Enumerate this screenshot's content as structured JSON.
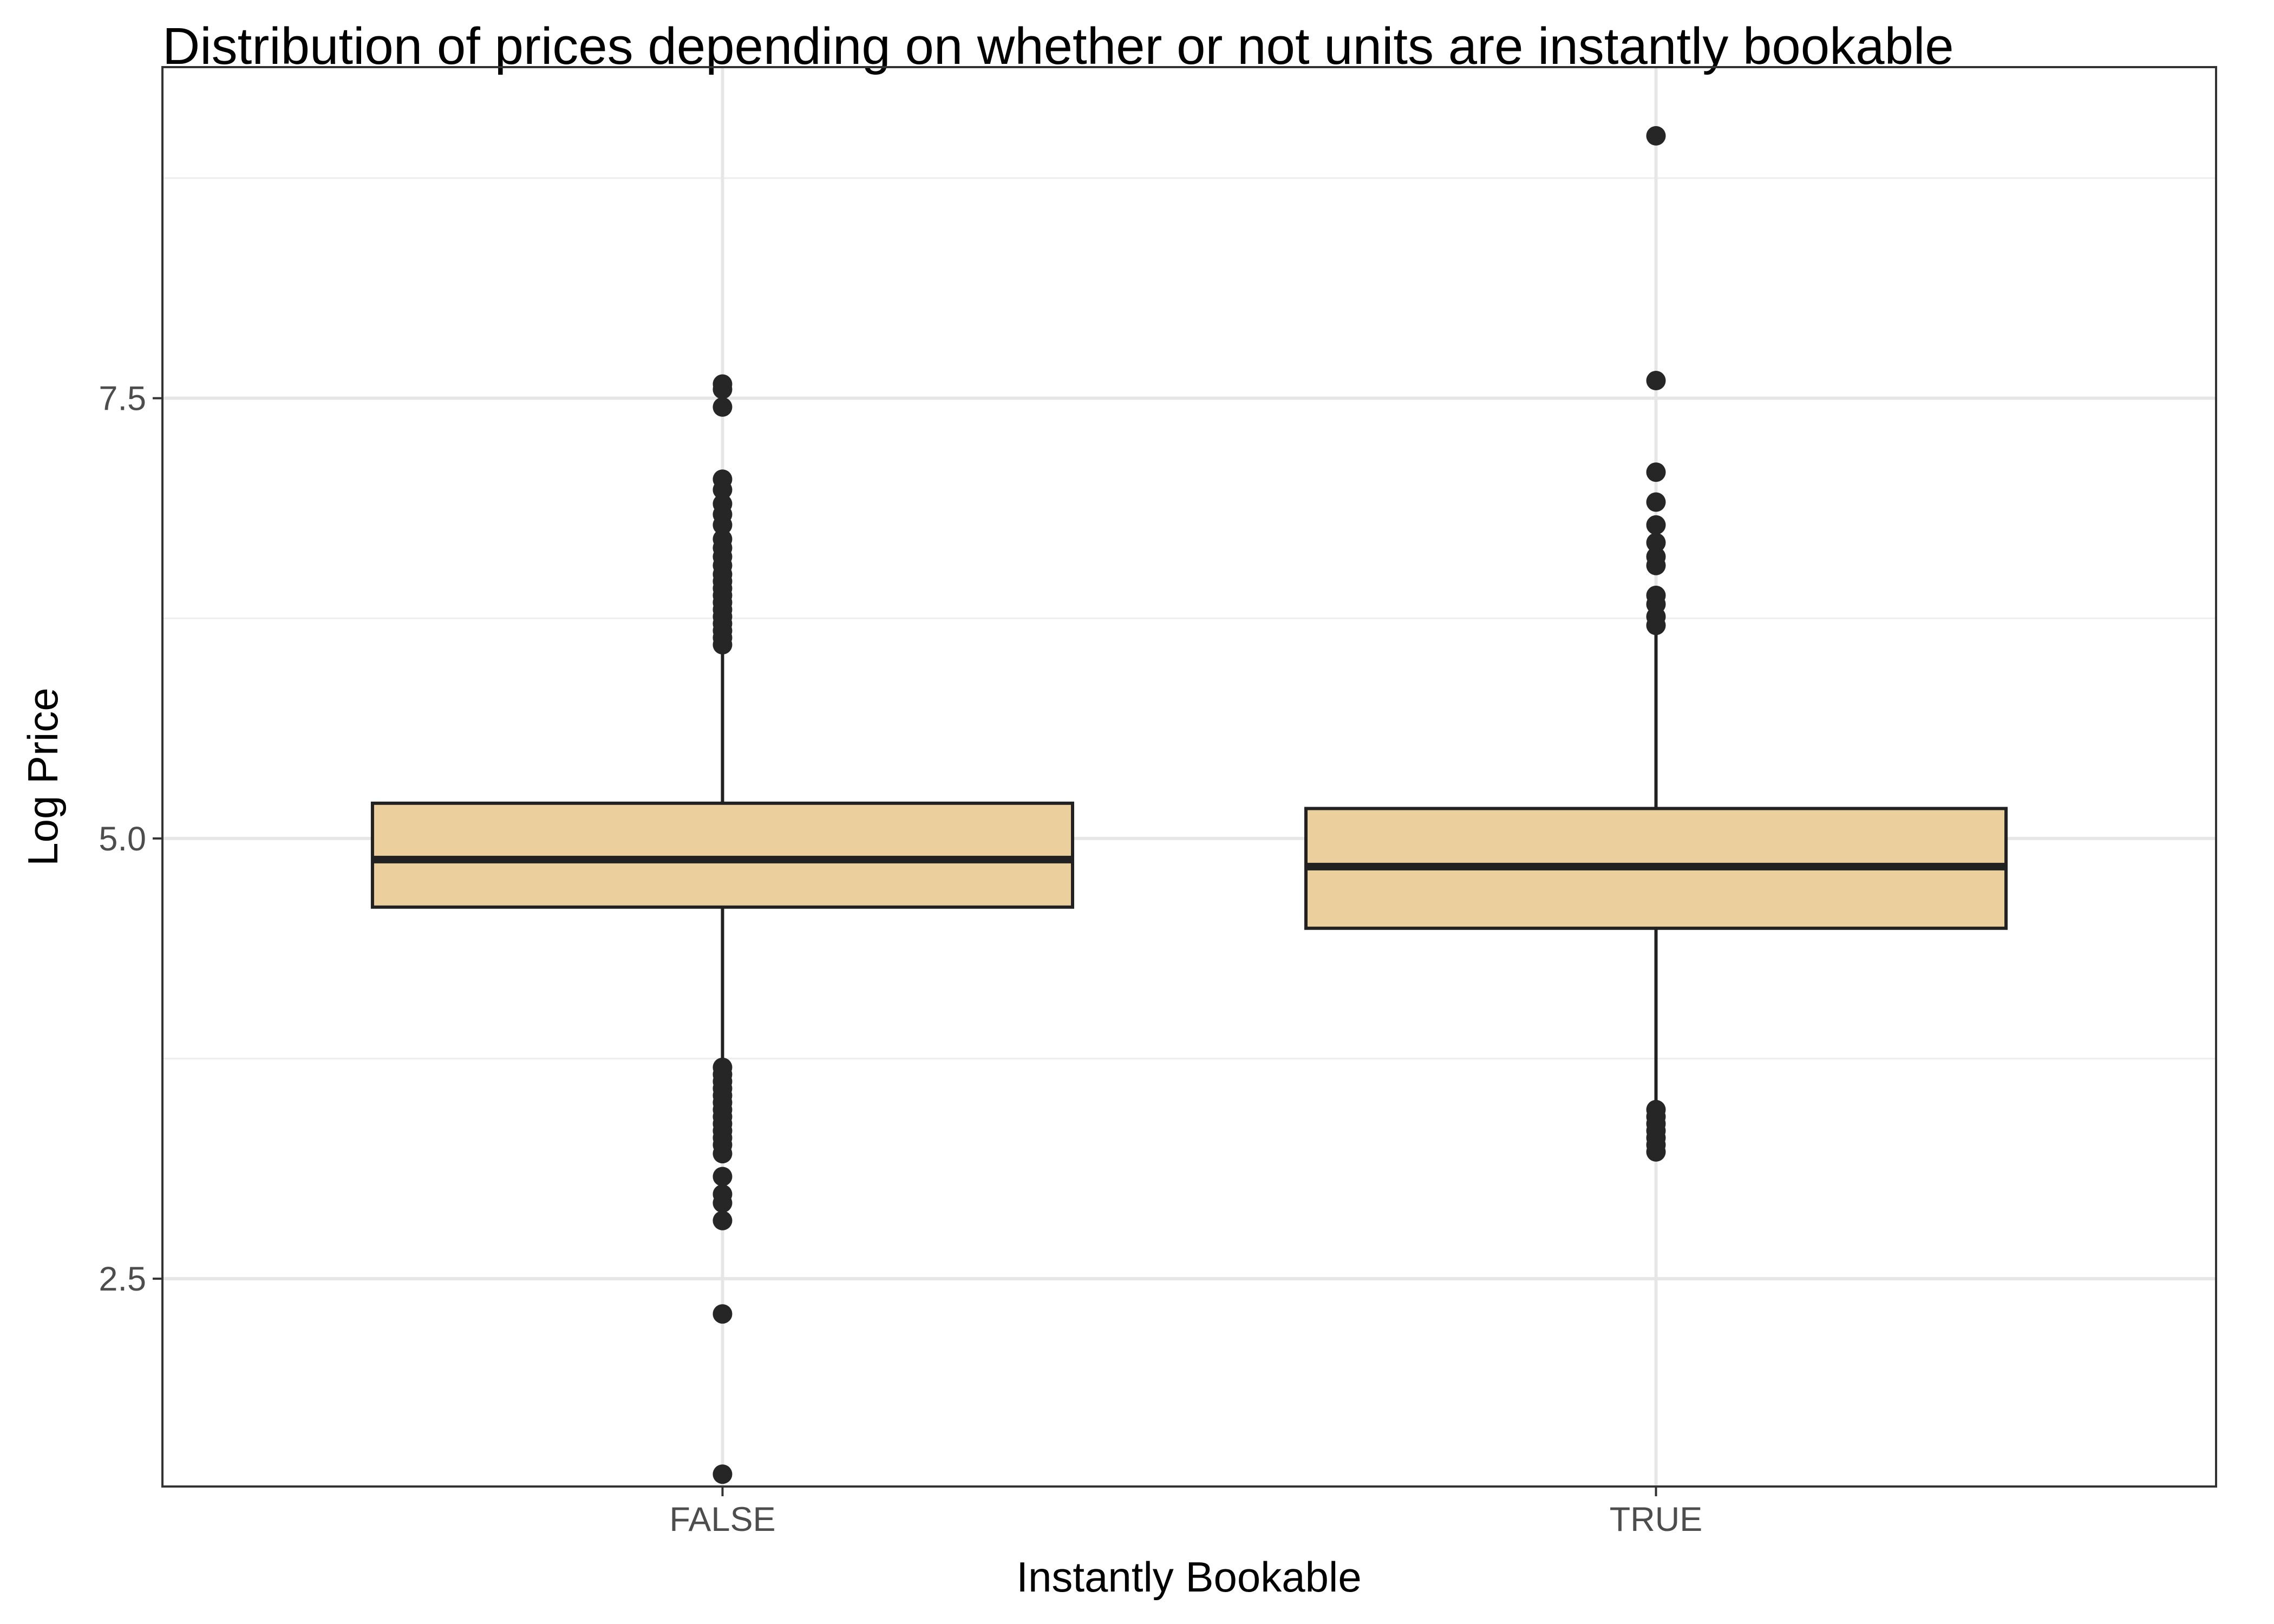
{
  "chart_data": {
    "type": "box",
    "title": "Distribution of prices depending on whether or not units are instantly bookable",
    "xlabel": "Instantly Bookable",
    "ylabel": "Log Price",
    "categories": [
      "FALSE",
      "TRUE"
    ],
    "y_ticks": [
      2.5,
      5.0,
      7.5
    ],
    "y_tick_labels": [
      "2.5",
      "5.0",
      "7.5"
    ],
    "ylim": [
      1.32,
      9.38
    ],
    "grid": true,
    "box_fill": "#EBD09E",
    "box_stroke": "#212121",
    "point_color": "#262626",
    "grid_major_color": "#e6e6e6",
    "grid_minor_color": "#ededed",
    "boxes": [
      {
        "category": "FALSE",
        "lower_whisker": 3.73,
        "q1": 4.61,
        "median": 4.88,
        "q3": 5.2,
        "upper_whisker": 6.09,
        "outliers": [
          7.58,
          7.55,
          7.45,
          7.04,
          6.98,
          6.9,
          6.84,
          6.78,
          6.7,
          6.65,
          6.6,
          6.55,
          6.5,
          6.46,
          6.42,
          6.38,
          6.34,
          6.3,
          6.26,
          6.22,
          6.18,
          6.14,
          6.1,
          3.7,
          3.66,
          3.62,
          3.58,
          3.54,
          3.5,
          3.46,
          3.42,
          3.38,
          3.34,
          3.3,
          3.26,
          3.21,
          3.08,
          2.98,
          2.93,
          2.83,
          2.3,
          1.39
        ]
      },
      {
        "category": "TRUE",
        "lower_whisker": 3.47,
        "q1": 4.49,
        "median": 4.84,
        "q3": 5.17,
        "upper_whisker": 6.2,
        "outliers": [
          8.99,
          7.6,
          7.08,
          6.91,
          6.78,
          6.68,
          6.6,
          6.55,
          6.38,
          6.33,
          6.26,
          6.21,
          3.46,
          3.42,
          3.38,
          3.34,
          3.3,
          3.26,
          3.22
        ]
      }
    ]
  }
}
